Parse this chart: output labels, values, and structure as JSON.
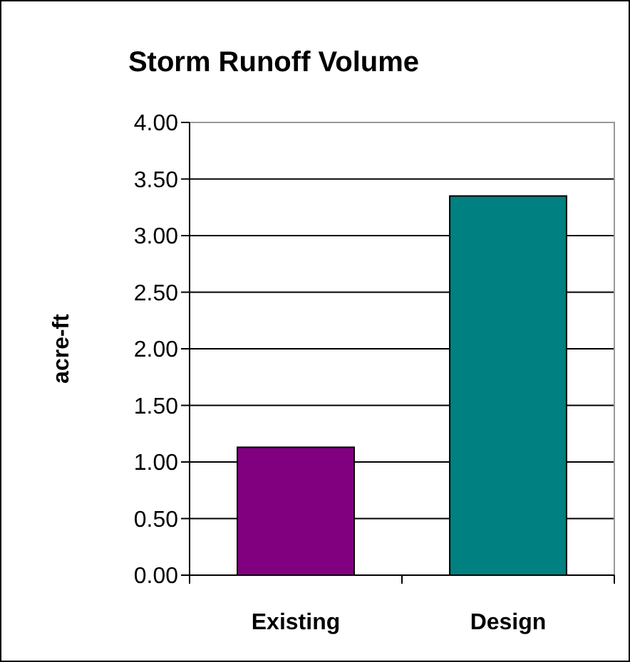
{
  "chart_data": {
    "type": "bar",
    "title": "Storm Runoff Volume",
    "ylabel": "acre-ft",
    "categories": [
      "Existing",
      "Design"
    ],
    "colors": [
      "#800080",
      "#008080"
    ],
    "values": [
      1.13,
      3.35
    ],
    "ylim": [
      0,
      4
    ],
    "yticks": [
      {
        "value": 0,
        "label": "0.00"
      },
      {
        "value": 0.5,
        "label": "0.50"
      },
      {
        "value": 1,
        "label": "1.00"
      },
      {
        "value": 1.5,
        "label": "1.50"
      },
      {
        "value": 2,
        "label": "2.00"
      },
      {
        "value": 2.5,
        "label": "2.50"
      },
      {
        "value": 3,
        "label": "3.00"
      },
      {
        "value": 3.5,
        "label": "3.50"
      },
      {
        "value": 4,
        "label": "4.00"
      }
    ],
    "grid": "y"
  }
}
